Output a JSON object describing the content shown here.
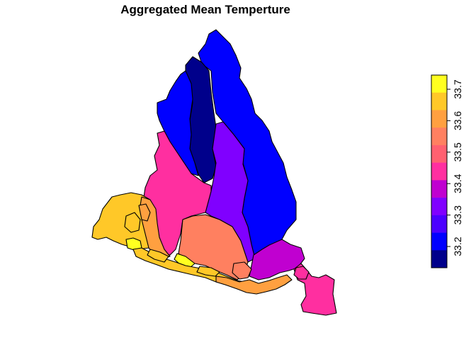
{
  "title": "Aggregated Mean Temperture",
  "colors": {
    "c1": "#00008B",
    "c2": "#0000FF",
    "c3": "#4B00FF",
    "c4": "#8000FF",
    "c5": "#C000D0",
    "c6": "#FF2FA0",
    "c7": "#FF6070",
    "c8": "#FF8060",
    "c9": "#FFA040",
    "c10": "#FFC828",
    "c11": "#FFFF20"
  },
  "legend": {
    "ticks": [
      "33.2",
      "33.3",
      "33.4",
      "33.5",
      "33.6",
      "33.7"
    ]
  }
}
